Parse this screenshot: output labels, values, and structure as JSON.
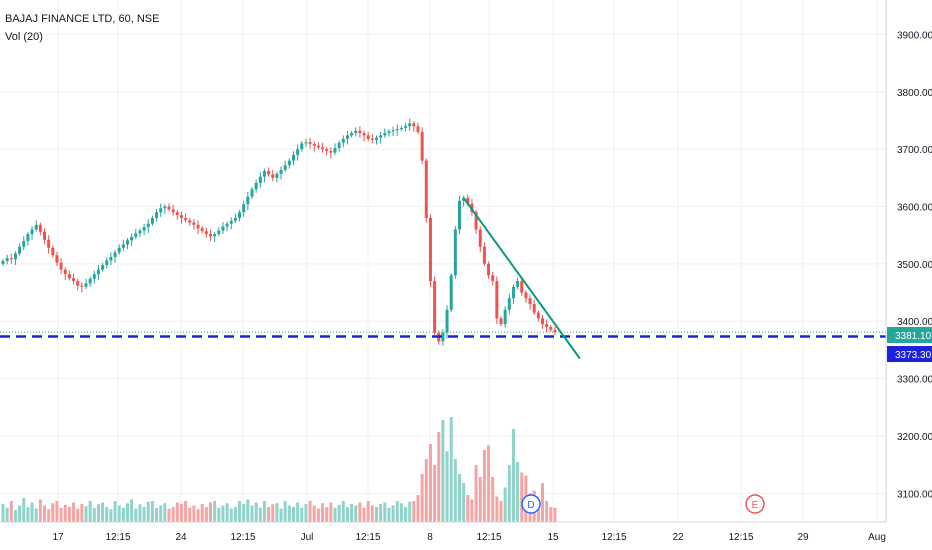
{
  "legend": {
    "title": "BAJAJ FINANCE LTD, 60, NSE",
    "indicator": "Vol (20)"
  },
  "colors": {
    "up": "#26a69a",
    "down": "#ef5350",
    "vol_up": "#8fd3c9",
    "vol_down": "#f5a3a3",
    "trendline": "#089981",
    "hline": "#1e22d8",
    "grid": "#eef0f3",
    "axis": "#d1d4dc",
    "last_price_bg": "#26a69a",
    "hline_tag_bg": "#1e22d8",
    "marker_d": "#2962ff",
    "marker_e": "#ef5350"
  },
  "price_axis": {
    "ticks": [
      "3900.00",
      "3800.00",
      "3700.00",
      "3600.00",
      "3500.00",
      "3400.00",
      "3300.00",
      "3200.00",
      "3100.00"
    ]
  },
  "time_axis": {
    "labels": [
      "17",
      "12:15",
      "24",
      "12:15",
      "Jul",
      "12:15",
      "8",
      "12:15",
      "15",
      "12:15",
      "22",
      "12:15",
      "29",
      "Aug"
    ]
  },
  "price_tags": {
    "last_price": "3381.10",
    "hline_price": "3373.30"
  },
  "markers": {
    "dividend": "D",
    "earnings": "E"
  },
  "chart_data": {
    "type": "candlestick",
    "title": "BAJAJ FINANCE LTD, 60, NSE",
    "symbol": "BAJAJ FINANCE LTD",
    "interval": "60",
    "exchange": "NSE",
    "ylim": [
      3050,
      3960
    ],
    "x_labels": [
      "17",
      "12:15",
      "24",
      "12:15",
      "Jul",
      "12:15",
      "8",
      "12:15",
      "15",
      "12:15",
      "22",
      "12:15",
      "29",
      "Aug"
    ],
    "closes": [
      3505,
      3510,
      3508,
      3518,
      3530,
      3540,
      3552,
      3560,
      3568,
      3556,
      3542,
      3528,
      3515,
      3502,
      3490,
      3482,
      3475,
      3470,
      3462,
      3460,
      3466,
      3474,
      3482,
      3490,
      3498,
      3506,
      3512,
      3520,
      3528,
      3534,
      3541,
      3547,
      3553,
      3558,
      3564,
      3570,
      3580,
      3590,
      3597,
      3600,
      3595,
      3590,
      3585,
      3580,
      3576,
      3572,
      3568,
      3562,
      3557,
      3552,
      3548,
      3552,
      3558,
      3565,
      3570,
      3575,
      3580,
      3590,
      3604,
      3617,
      3630,
      3641,
      3652,
      3662,
      3656,
      3650,
      3657,
      3664,
      3672,
      3680,
      3690,
      3700,
      3710,
      3712,
      3709,
      3706,
      3703,
      3700,
      3697,
      3694,
      3702,
      3711,
      3718,
      3724,
      3728,
      3732,
      3728,
      3724,
      3718,
      3716,
      3720,
      3724,
      3728,
      3731,
      3733,
      3735,
      3737,
      3740,
      3745,
      3740,
      3730,
      3680,
      3580,
      3470,
      3380,
      3365,
      3380,
      3420,
      3480,
      3560,
      3610,
      3615,
      3605,
      3590,
      3560,
      3530,
      3500,
      3480,
      3470,
      3405,
      3395,
      3420,
      3440,
      3460,
      3470,
      3450,
      3440,
      3430,
      3415,
      3405,
      3395,
      3390,
      3385,
      3381.1
    ],
    "volume_ylim": [
      0,
      1000
    ],
    "volumes": [
      120,
      95,
      140,
      80,
      110,
      160,
      100,
      130,
      90,
      150,
      110,
      85,
      125,
      140,
      95,
      115,
      100,
      130,
      88,
      120,
      105,
      140,
      92,
      118,
      130,
      100,
      85,
      140,
      110,
      95,
      125,
      150,
      90,
      118,
      100,
      135,
      140,
      95,
      110,
      125,
      88,
      100,
      130,
      120,
      140,
      95,
      110,
      85,
      120,
      100,
      130,
      140,
      95,
      110,
      125,
      90,
      100,
      140,
      120,
      150,
      110,
      130,
      95,
      140,
      100,
      118,
      125,
      90,
      140,
      110,
      100,
      130,
      95,
      120,
      140,
      110,
      90,
      125,
      100,
      130,
      95,
      115,
      140,
      100,
      120,
      110,
      130,
      95,
      140,
      110,
      100,
      120,
      130,
      95,
      110,
      140,
      125,
      100,
      135,
      140,
      180,
      320,
      420,
      520,
      380,
      600,
      680,
      470,
      700,
      420,
      320,
      260,
      180,
      150,
      380,
      300,
      480,
      510,
      300,
      170,
      140,
      230,
      380,
      620,
      400,
      330,
      310,
      190,
      210,
      150,
      260,
      140,
      100,
      95
    ],
    "last_price": 3381.1,
    "horizontal_line_price": 3373.3,
    "trendline": {
      "from_index": 111,
      "from_price": 3615,
      "to_index": 139,
      "to_price": 3335
    }
  }
}
